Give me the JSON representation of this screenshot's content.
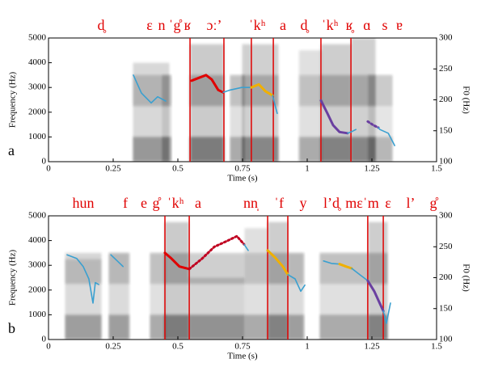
{
  "chart_data": [
    {
      "type": "line",
      "panel_label": "a",
      "xlabel": "Time (s)",
      "ylabel": "Frequency (Hz)",
      "y2label": "F0 (Hz)",
      "xlim": [
        0,
        1.5
      ],
      "xticks": [
        0,
        0.25,
        0.5,
        0.75,
        1,
        1.25,
        1.5
      ],
      "ylim": [
        0,
        5000
      ],
      "yticks": [
        0,
        1000,
        2000,
        3000,
        4000,
        5000
      ],
      "y2lim": [
        100,
        300
      ],
      "y2ticks": [
        100,
        150,
        200,
        250,
        300
      ],
      "segments": [
        "d̥",
        "ɛ",
        "n",
        "ˈg̊",
        "ʁ",
        "ɔː’",
        "ˈkʰ",
        "a",
        "d̥",
        "ˈkʰ",
        "ʁ̥",
        "ɑ",
        "s",
        "ɐ"
      ],
      "boundaries": [
        0.547,
        0.678,
        0.784,
        0.869,
        1.053,
        1.169
      ],
      "boundary_color": "#e00000",
      "series": [
        {
          "color": "#3aa0d0",
          "axis": "y2",
          "x": [
            0.328,
            0.359,
            0.397,
            0.422,
            0.453
          ],
          "values": [
            240,
            211,
            195,
            205,
            198
          ]
        },
        {
          "color": "#e00000",
          "axis": "y2",
          "x": [
            0.553,
            0.578,
            0.609,
            0.631,
            0.656,
            0.675
          ],
          "values": [
            231,
            235,
            240,
            233,
            216,
            212
          ]
        },
        {
          "color": "#3aa0d0",
          "axis": "y2",
          "x": [
            0.675,
            0.703,
            0.747,
            0.784
          ],
          "values": [
            212,
            216,
            220,
            220
          ]
        },
        {
          "color": "#f0b000",
          "axis": "y2",
          "x": [
            0.784,
            0.813,
            0.838,
            0.866
          ],
          "values": [
            220,
            225,
            214,
            207
          ]
        },
        {
          "color": "#3aa0d0",
          "axis": "y2",
          "x": [
            0.866,
            0.884
          ],
          "values": [
            207,
            178
          ]
        },
        {
          "color": "#6a3fa0",
          "axis": "y2",
          "x": [
            1.053,
            1.078,
            1.1,
            1.125,
            1.156
          ],
          "values": [
            199,
            178,
            159,
            148,
            146
          ]
        },
        {
          "color": "#3aa0d0",
          "axis": "y2",
          "x": [
            1.156,
            1.169,
            1.188
          ],
          "values": [
            146,
            148,
            152
          ]
        },
        {
          "color": "#6a3fa0",
          "axis": "y2",
          "dashed": true,
          "x": [
            1.234,
            1.256,
            1.275
          ],
          "values": [
            165,
            159,
            155
          ]
        },
        {
          "color": "#3aa0d0",
          "axis": "y2",
          "x": [
            1.275,
            1.281,
            1.313,
            1.338
          ],
          "values": [
            155,
            152,
            146,
            126
          ]
        }
      ]
    },
    {
      "type": "line",
      "panel_label": "b",
      "xlabel": "Time (s)",
      "ylabel": "Frequency (Hz)",
      "y2label": "F0 (Hz)",
      "xlim": [
        0,
        1.5
      ],
      "xticks": [
        0,
        0.25,
        0.5,
        0.75,
        1,
        1.25,
        1.5
      ],
      "ylim": [
        0,
        5000
      ],
      "yticks": [
        0,
        1000,
        2000,
        3000,
        4000,
        5000
      ],
      "y2lim": [
        100,
        300
      ],
      "y2ticks": [
        100,
        150,
        200,
        250,
        300
      ],
      "segments": [
        "hun",
        "f",
        "e",
        "g̊",
        "ˈkʰ",
        "a",
        "nn̩",
        "ˈf",
        "y",
        "l’d̥",
        "mɛˈm",
        "ɛ",
        "l’",
        "g̊"
      ],
      "boundaries": [
        0.45,
        0.544,
        0.847,
        0.925,
        1.234,
        1.294
      ],
      "boundary_color": "#e00000",
      "series": [
        {
          "color": "#3aa0d0",
          "axis": "y2",
          "x": [
            0.072,
            0.109,
            0.134,
            0.156,
            0.172,
            0.181,
            0.194
          ],
          "values": [
            237,
            231,
            218,
            198,
            159,
            192,
            189
          ]
        },
        {
          "color": "#3aa0d0",
          "axis": "y2",
          "x": [
            0.241,
            0.266,
            0.288
          ],
          "values": [
            237,
            227,
            218
          ]
        },
        {
          "color": "#e00000",
          "axis": "y2",
          "x": [
            0.45,
            0.475,
            0.506,
            0.544
          ],
          "values": [
            240,
            231,
            218,
            214
          ]
        },
        {
          "color": "#c00020",
          "axis": "y2",
          "dashed": true,
          "x": [
            0.544,
            0.594,
            0.641,
            0.688,
            0.728,
            0.756
          ],
          "values": [
            214,
            231,
            250,
            259,
            267,
            254
          ]
        },
        {
          "color": "#3aa0d0",
          "axis": "y2",
          "x": [
            0.756,
            0.772
          ],
          "values": [
            254,
            244
          ]
        },
        {
          "color": "#f0b000",
          "axis": "y2",
          "x": [
            0.847,
            0.875,
            0.906,
            0.925
          ],
          "values": [
            244,
            233,
            218,
            205
          ]
        },
        {
          "color": "#3aa0d0",
          "axis": "y2",
          "x": [
            0.925,
            0.953,
            0.975,
            0.991
          ],
          "values": [
            205,
            198,
            178,
            188
          ]
        },
        {
          "color": "#3aa0d0",
          "axis": "y2",
          "x": [
            1.063,
            1.094,
            1.125
          ],
          "values": [
            227,
            223,
            222
          ]
        },
        {
          "color": "#f0b000",
          "axis": "y2",
          "x": [
            1.125,
            1.15,
            1.172
          ],
          "values": [
            222,
            218,
            215
          ]
        },
        {
          "color": "#3aa0d0",
          "axis": "y2",
          "x": [
            1.172,
            1.203,
            1.234
          ],
          "values": [
            215,
            205,
            195
          ]
        },
        {
          "color": "#6a3fa0",
          "axis": "y2",
          "x": [
            1.234,
            1.259,
            1.294
          ],
          "values": [
            195,
            178,
            146
          ]
        },
        {
          "color": "#3aa0d0",
          "axis": "y2",
          "x": [
            1.294,
            1.306,
            1.322
          ],
          "values": [
            146,
            126,
            159
          ]
        }
      ]
    }
  ]
}
